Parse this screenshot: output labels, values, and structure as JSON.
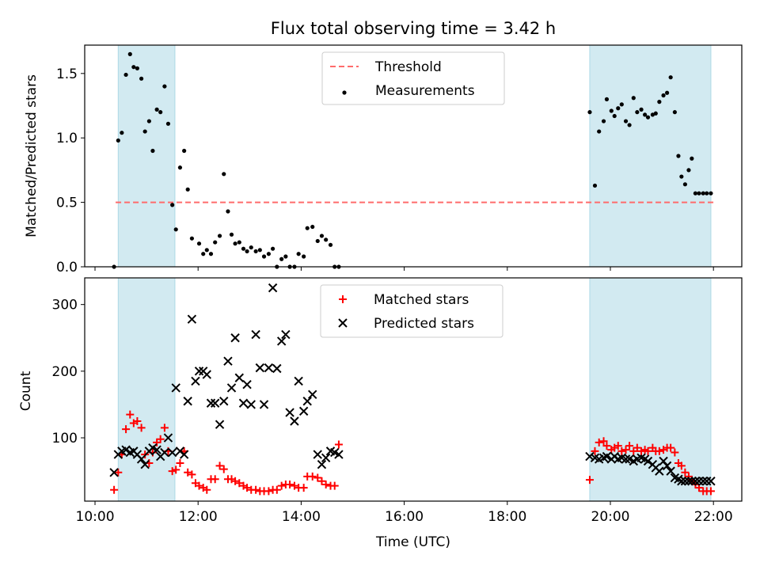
{
  "title": "Flux total observing time = 3.42 h",
  "colors": {
    "band": "#add8e6",
    "threshold": "#ff6b6b",
    "measurement": "#000000",
    "matched": "#ff0000",
    "predicted": "#000000"
  },
  "x_axis": {
    "label": "Time (UTC)",
    "range_hours": [
      9.8,
      22.55
    ],
    "ticks": [
      {
        "value": 10,
        "label": "10:00"
      },
      {
        "value": 12,
        "label": "12:00"
      },
      {
        "value": 14,
        "label": "14:00"
      },
      {
        "value": 16,
        "label": "16:00"
      },
      {
        "value": 18,
        "label": "18:00"
      },
      {
        "value": 20,
        "label": "20:00"
      },
      {
        "value": 22,
        "label": "22:00"
      }
    ]
  },
  "chart_data": [
    {
      "type": "scatter",
      "ylabel": "Matched/Predicted stars",
      "ylim": [
        0,
        1.72
      ],
      "yticks": [
        0.0,
        0.5,
        1.0,
        1.5
      ],
      "ytick_labels": [
        "0.0",
        "0.5",
        "1.0",
        "1.5"
      ],
      "shaded_intervals": [
        [
          10.45,
          11.55
        ],
        [
          19.6,
          21.95
        ]
      ],
      "legend": {
        "position": "upper center",
        "entries": [
          "Threshold",
          "Measurements"
        ]
      },
      "threshold": {
        "name": "Threshold",
        "value": 0.5,
        "x_range": [
          10.4,
          22.0
        ],
        "style": "dashed"
      },
      "series": [
        {
          "name": "Measurements",
          "marker": "dot",
          "x": [
            10.37,
            10.45,
            10.52,
            10.6,
            10.68,
            10.75,
            10.82,
            10.9,
            10.97,
            11.05,
            11.12,
            11.2,
            11.27,
            11.35,
            11.42,
            11.5,
            11.57,
            11.65,
            11.73,
            11.8,
            11.88,
            12.02,
            12.1,
            12.17,
            12.25,
            12.33,
            12.42,
            12.5,
            12.58,
            12.65,
            12.72,
            12.8,
            12.88,
            12.95,
            13.03,
            13.12,
            13.2,
            13.28,
            13.37,
            13.45,
            13.53,
            13.62,
            13.7,
            13.78,
            13.87,
            13.95,
            14.05,
            14.12,
            14.22,
            14.32,
            14.4,
            14.48,
            14.57,
            14.65,
            14.73,
            19.6,
            19.7,
            19.78,
            19.87,
            19.93,
            20.02,
            20.08,
            20.15,
            20.22,
            20.3,
            20.37,
            20.45,
            20.52,
            20.6,
            20.67,
            20.73,
            20.82,
            20.88,
            20.95,
            21.03,
            21.1,
            21.17,
            21.25,
            21.32,
            21.38,
            21.45,
            21.52,
            21.58,
            21.65,
            21.72,
            21.8,
            21.87,
            21.95
          ],
          "y": [
            0.0,
            0.98,
            1.04,
            1.49,
            1.65,
            1.55,
            1.54,
            1.46,
            1.05,
            1.13,
            0.9,
            1.22,
            1.2,
            1.4,
            1.11,
            0.48,
            0.29,
            0.77,
            0.9,
            0.6,
            0.22,
            0.18,
            0.1,
            0.13,
            0.1,
            0.19,
            0.24,
            0.72,
            0.43,
            0.25,
            0.18,
            0.19,
            0.14,
            0.12,
            0.15,
            0.12,
            0.13,
            0.08,
            0.1,
            0.14,
            0.0,
            0.06,
            0.08,
            0.0,
            0.0,
            0.1,
            0.08,
            0.3,
            0.31,
            0.2,
            0.24,
            0.21,
            0.17,
            0.0,
            0.0,
            1.2,
            0.63,
            1.05,
            1.13,
            1.3,
            1.21,
            1.17,
            1.23,
            1.26,
            1.13,
            1.1,
            1.31,
            1.2,
            1.22,
            1.18,
            1.16,
            1.18,
            1.19,
            1.28,
            1.33,
            1.35,
            1.47,
            1.2,
            0.86,
            0.7,
            0.64,
            0.75,
            0.84,
            0.57,
            0.57,
            0.57,
            0.57,
            0.57
          ],
          "x_visible_count": 88
        }
      ]
    },
    {
      "type": "scatter",
      "xlabel": "Time (UTC)",
      "ylabel": "Count",
      "ylim": [
        5,
        340
      ],
      "yticks": [
        100,
        200,
        300
      ],
      "ytick_labels": [
        "100",
        "200",
        "300"
      ],
      "shaded_intervals": [
        [
          10.45,
          11.55
        ],
        [
          19.6,
          21.95
        ]
      ],
      "legend": {
        "position": "upper center",
        "entries": [
          "Matched stars",
          "Predicted stars"
        ]
      },
      "series": [
        {
          "name": "Matched stars",
          "marker": "plus",
          "x": [
            10.37,
            10.45,
            10.52,
            10.6,
            10.68,
            10.75,
            10.82,
            10.9,
            10.97,
            11.05,
            11.12,
            11.2,
            11.27,
            11.35,
            11.42,
            11.5,
            11.57,
            11.65,
            11.73,
            11.8,
            11.88,
            11.95,
            12.02,
            12.1,
            12.17,
            12.25,
            12.33,
            12.42,
            12.5,
            12.58,
            12.65,
            12.72,
            12.8,
            12.88,
            12.95,
            13.03,
            13.12,
            13.2,
            13.28,
            13.37,
            13.45,
            13.53,
            13.62,
            13.7,
            13.78,
            13.87,
            13.95,
            14.05,
            14.12,
            14.22,
            14.32,
            14.4,
            14.48,
            14.57,
            14.65,
            14.73,
            19.6,
            19.7,
            19.78,
            19.87,
            19.93,
            20.02,
            20.08,
            20.15,
            20.22,
            20.3,
            20.37,
            20.45,
            20.52,
            20.6,
            20.67,
            20.73,
            20.82,
            20.88,
            20.95,
            21.03,
            21.1,
            21.17,
            21.25,
            21.32,
            21.38,
            21.45,
            21.52,
            21.58,
            21.65,
            21.72,
            21.8,
            21.87,
            21.95
          ],
          "y": [
            22,
            48,
            75,
            113,
            135,
            122,
            125,
            115,
            75,
            62,
            78,
            93,
            98,
            115,
            80,
            50,
            52,
            62,
            80,
            48,
            45,
            32,
            28,
            25,
            22,
            38,
            38,
            58,
            53,
            38,
            38,
            35,
            32,
            28,
            25,
            22,
            22,
            20,
            20,
            20,
            22,
            22,
            28,
            30,
            30,
            28,
            25,
            25,
            42,
            42,
            40,
            35,
            30,
            28,
            28,
            90,
            37,
            80,
            93,
            95,
            88,
            82,
            85,
            88,
            80,
            82,
            88,
            80,
            85,
            80,
            82,
            80,
            85,
            80,
            80,
            82,
            85,
            85,
            78,
            62,
            58,
            48,
            42,
            35,
            30,
            25,
            20,
            20,
            20
          ],
          "y_visible_count": 89
        },
        {
          "name": "Predicted stars",
          "marker": "x",
          "x": [
            10.37,
            10.45,
            10.52,
            10.6,
            10.68,
            10.75,
            10.82,
            10.9,
            10.97,
            11.05,
            11.12,
            11.2,
            11.27,
            11.35,
            11.42,
            11.5,
            11.57,
            11.65,
            11.73,
            11.8,
            11.88,
            11.95,
            12.02,
            12.1,
            12.17,
            12.25,
            12.33,
            12.42,
            12.5,
            12.58,
            12.65,
            12.72,
            12.8,
            12.88,
            12.95,
            13.03,
            13.12,
            13.2,
            13.28,
            13.37,
            13.45,
            13.53,
            13.62,
            13.7,
            13.78,
            13.87,
            13.95,
            14.05,
            14.12,
            14.22,
            14.32,
            14.4,
            14.48,
            14.57,
            14.65,
            14.73,
            19.6,
            19.7,
            19.78,
            19.87,
            19.93,
            20.02,
            20.08,
            20.15,
            20.22,
            20.3,
            20.37,
            20.45,
            20.52,
            20.6,
            20.67,
            20.73,
            20.82,
            20.88,
            20.95,
            21.03,
            21.1,
            21.17,
            21.25,
            21.32,
            21.38,
            21.45,
            21.52,
            21.58,
            21.65,
            21.72,
            21.8,
            21.87,
            21.95
          ],
          "y": [
            48,
            75,
            80,
            82,
            78,
            80,
            75,
            68,
            60,
            80,
            85,
            82,
            72,
            78,
            100,
            78,
            175,
            80,
            75,
            155,
            278,
            185,
            200,
            200,
            195,
            152,
            152,
            120,
            155,
            215,
            175,
            250,
            190,
            152,
            180,
            150,
            255,
            205,
            150,
            205,
            325,
            204,
            245,
            255,
            138,
            125,
            185,
            140,
            155,
            165,
            75,
            60,
            70,
            80,
            78,
            75,
            72,
            70,
            68,
            70,
            72,
            68,
            72,
            68,
            70,
            68,
            68,
            65,
            68,
            70,
            68,
            65,
            60,
            55,
            50,
            65,
            58,
            50,
            40,
            38,
            35,
            35,
            35,
            35,
            35,
            35,
            35,
            35,
            35
          ],
          "y_visible_count": 89
        }
      ]
    }
  ]
}
